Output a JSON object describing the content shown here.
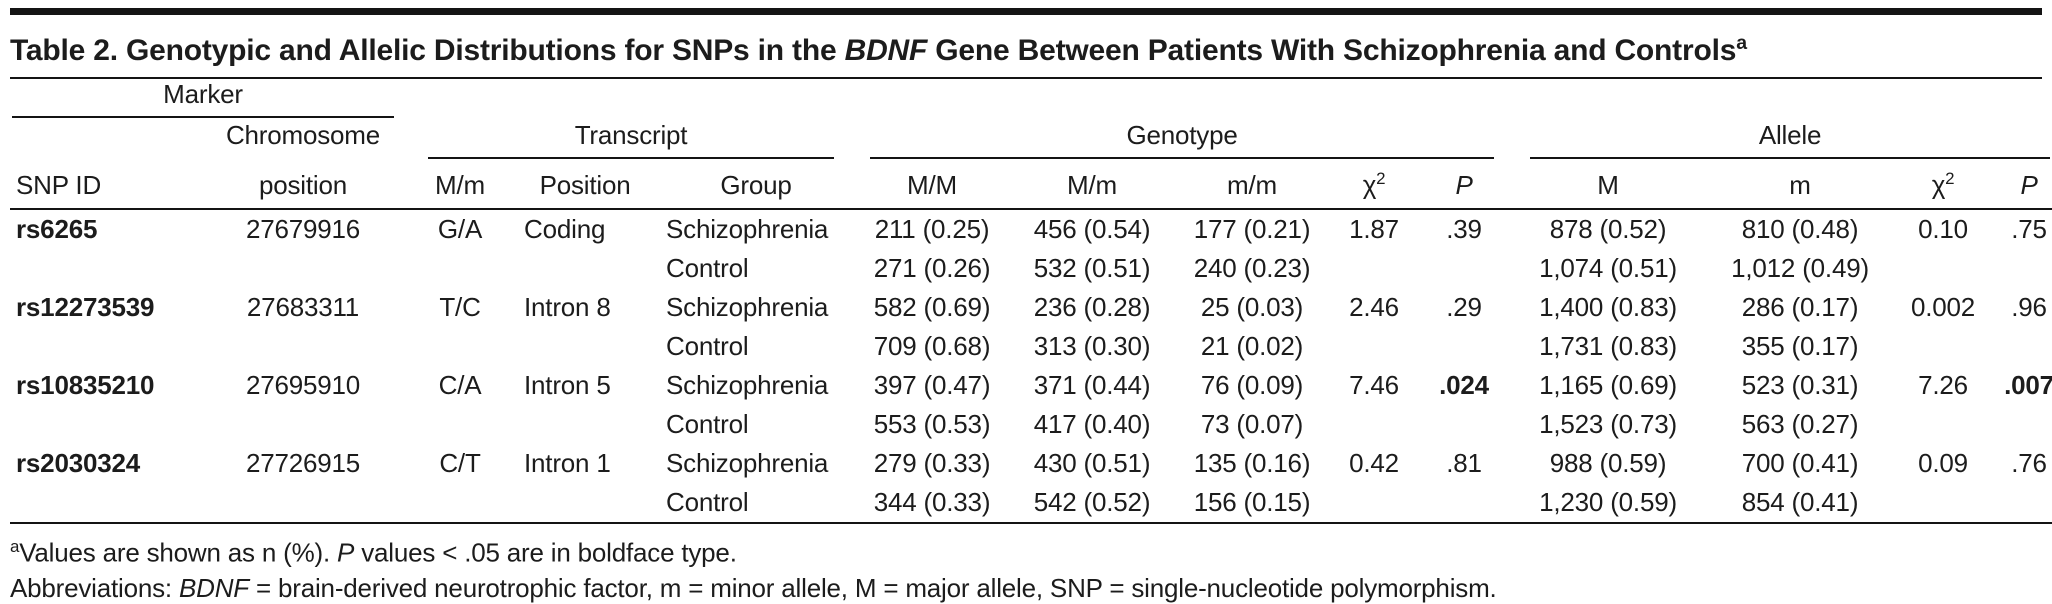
{
  "title": {
    "prefix": "Table 2. Genotypic and Allelic Distributions for SNPs in the ",
    "gene": "BDNF",
    "suffix": " Gene Between Patients With Schizophrenia and Controls",
    "footnote_mark": "a"
  },
  "header": {
    "marker": "Marker",
    "snp_id": "SNP ID",
    "chromosome_line1": "Chromosome",
    "chromosome_line2": "position",
    "transcript": "Transcript",
    "transcript_mm": "M/m",
    "transcript_position": "Position",
    "transcript_group": "Group",
    "genotype": "Genotype",
    "genotype_MM": "M/M",
    "genotype_Mm": "M/m",
    "genotype_mm": "m/m",
    "chi": "χ",
    "chi_sup": "2",
    "p": "P",
    "allele": "Allele",
    "allele_M": "M",
    "allele_m": "m"
  },
  "chart_data": {
    "type": "table",
    "title": "Table 2. Genotypic and Allelic Distributions for SNPs in the BDNF Gene Between Patients With Schizophrenia and Controls",
    "columns": [
      "SNP ID",
      "Chromosome position",
      "M/m",
      "Position",
      "Group",
      "M/M",
      "M/m",
      "m/m",
      "χ2",
      "P",
      "M",
      "m",
      "χ2",
      "P"
    ]
  },
  "rows": [
    {
      "cells": [
        "rs6265",
        "27679916",
        "G/A",
        "Coding",
        "Schizophrenia",
        "211 (0.25)",
        "456 (0.54)",
        "177 (0.21)",
        "1.87",
        ".39",
        "878 (0.52)",
        "810 (0.48)",
        "0.10",
        ".75"
      ],
      "bold": []
    },
    {
      "cells": [
        "",
        "",
        "",
        "",
        "Control",
        "271 (0.26)",
        "532 (0.51)",
        "240 (0.23)",
        "",
        "",
        "1,074 (0.51)",
        "1,012 (0.49)",
        "",
        ""
      ],
      "bold": []
    },
    {
      "cells": [
        "rs12273539",
        "27683311",
        "T/C",
        "Intron 8",
        "Schizophrenia",
        "582 (0.69)",
        "236 (0.28)",
        "25 (0.03)",
        "2.46",
        ".29",
        "1,400 (0.83)",
        "286 (0.17)",
        "0.002",
        ".96"
      ],
      "bold": []
    },
    {
      "cells": [
        "",
        "",
        "",
        "",
        "Control",
        "709 (0.68)",
        "313 (0.30)",
        "21 (0.02)",
        "",
        "",
        "1,731 (0.83)",
        "355 (0.17)",
        "",
        ""
      ],
      "bold": []
    },
    {
      "cells": [
        "rs10835210",
        "27695910",
        "C/A",
        "Intron 5",
        "Schizophrenia",
        "397 (0.47)",
        "371 (0.44)",
        "76 (0.09)",
        "7.46",
        ".024",
        "1,165 (0.69)",
        "523 (0.31)",
        "7.26",
        ".007"
      ],
      "bold": [
        9,
        13
      ]
    },
    {
      "cells": [
        "",
        "",
        "",
        "",
        "Control",
        "553 (0.53)",
        "417 (0.40)",
        "73 (0.07)",
        "",
        "",
        "1,523 (0.73)",
        "563 (0.27)",
        "",
        ""
      ],
      "bold": []
    },
    {
      "cells": [
        "rs2030324",
        "27726915",
        "C/T",
        "Intron 1",
        "Schizophrenia",
        "279 (0.33)",
        "430 (0.51)",
        "135 (0.16)",
        "0.42",
        ".81",
        "988 (0.59)",
        "700 (0.41)",
        "0.09",
        ".76"
      ],
      "bold": []
    },
    {
      "cells": [
        "",
        "",
        "",
        "",
        "Control",
        "344 (0.33)",
        "542 (0.52)",
        "156 (0.15)",
        "",
        "",
        "1,230 (0.59)",
        "854 (0.41)",
        "",
        ""
      ],
      "bold": []
    }
  ],
  "footnotes": {
    "note_mark": "a",
    "note_text1": "Values are shown as n (%). ",
    "note_italic": "P",
    "note_text2": " values < .05 are in boldface type.",
    "abbrev_label": "Abbreviations: ",
    "abbrev_gene": "BDNF",
    "abbrev_text": " = brain-derived neurotrophic factor, m = minor allele, M = major allele, SNP = single-nucleotide polymorphism."
  },
  "colors": {
    "text": "#1c1c1c",
    "rule": "#141414"
  }
}
